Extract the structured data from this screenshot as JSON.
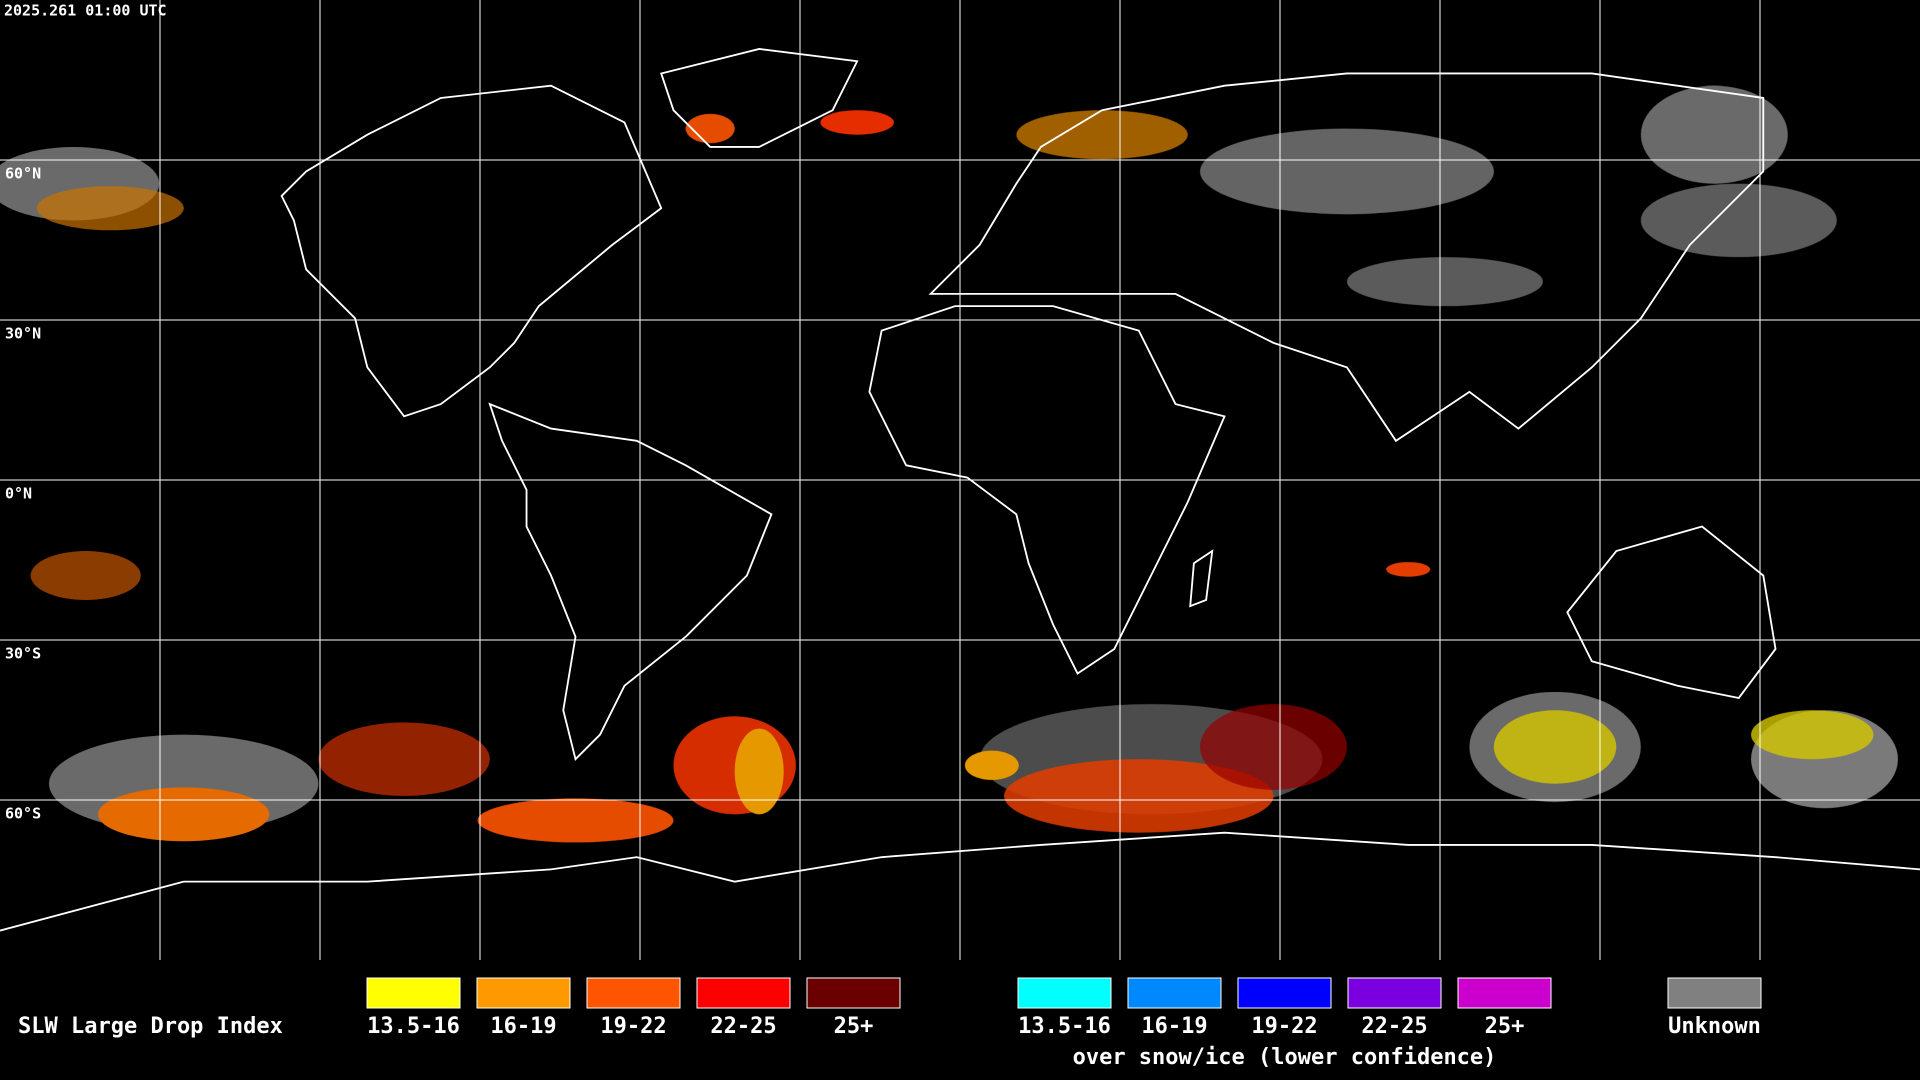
{
  "header": {
    "timestamp": "2025.261 01:00 UTC"
  },
  "map": {
    "latitude_labels": [
      "60°N",
      "30°N",
      "0°N",
      "30°S",
      "60°S"
    ]
  },
  "legend": {
    "title": "SLW Large Drop Index",
    "groups": [
      {
        "items": [
          {
            "label": "13.5-16",
            "color": "#ffff00"
          },
          {
            "label": "16-19",
            "color": "#ff9900"
          },
          {
            "label": "19-22",
            "color": "#ff5500"
          },
          {
            "label": "22-25",
            "color": "#ff0000"
          },
          {
            "label": "25+",
            "color": "#6b0000"
          }
        ]
      },
      {
        "items": [
          {
            "label": "13.5-16",
            "color": "#00ffff"
          },
          {
            "label": "16-19",
            "color": "#0088ff"
          },
          {
            "label": "19-22",
            "color": "#0000ff"
          },
          {
            "label": "22-25",
            "color": "#7a00e0"
          },
          {
            "label": "25+",
            "color": "#cc00cc"
          }
        ],
        "caption": "over snow/ice (lower confidence)"
      },
      {
        "items": [
          {
            "label": "Unknown",
            "color": "#808080"
          }
        ]
      }
    ]
  }
}
